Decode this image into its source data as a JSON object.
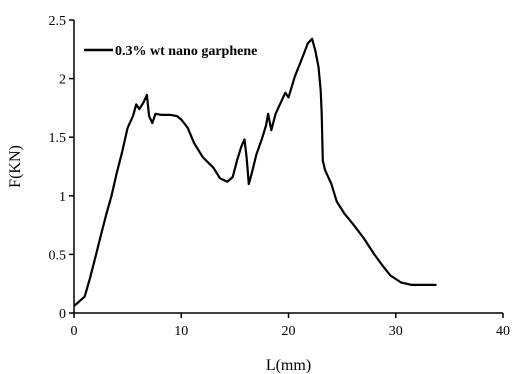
{
  "chart_data": {
    "type": "line",
    "xlabel": "L(mm)",
    "ylabel": "F(KN)",
    "xlim": [
      0,
      40
    ],
    "ylim": [
      0,
      2.5
    ],
    "x_ticks": [
      "0",
      "10",
      "20",
      "30",
      "40"
    ],
    "y_ticks": [
      "0",
      "0.5",
      "1",
      "1.5",
      "2",
      "2.5"
    ],
    "grid": false,
    "legend_position": "top-left",
    "series": [
      {
        "name": "0.3% wt nano garphene",
        "color": "#000000",
        "points": [
          [
            0.0,
            0.06
          ],
          [
            0.5,
            0.1
          ],
          [
            1.0,
            0.14
          ],
          [
            1.5,
            0.3
          ],
          [
            2.0,
            0.48
          ],
          [
            2.5,
            0.66
          ],
          [
            3.0,
            0.84
          ],
          [
            3.5,
            1.0
          ],
          [
            4.0,
            1.2
          ],
          [
            4.5,
            1.38
          ],
          [
            5.0,
            1.58
          ],
          [
            5.5,
            1.68
          ],
          [
            5.8,
            1.78
          ],
          [
            6.1,
            1.74
          ],
          [
            6.5,
            1.8
          ],
          [
            6.8,
            1.86
          ],
          [
            7.0,
            1.68
          ],
          [
            7.3,
            1.62
          ],
          [
            7.6,
            1.7
          ],
          [
            8.2,
            1.69
          ],
          [
            9.0,
            1.69
          ],
          [
            9.6,
            1.68
          ],
          [
            10.0,
            1.65
          ],
          [
            10.6,
            1.58
          ],
          [
            11.2,
            1.45
          ],
          [
            12.0,
            1.33
          ],
          [
            13.0,
            1.24
          ],
          [
            13.6,
            1.15
          ],
          [
            14.3,
            1.12
          ],
          [
            14.8,
            1.16
          ],
          [
            15.2,
            1.3
          ],
          [
            15.6,
            1.42
          ],
          [
            15.9,
            1.48
          ],
          [
            16.1,
            1.32
          ],
          [
            16.3,
            1.1
          ],
          [
            16.6,
            1.2
          ],
          [
            17.0,
            1.35
          ],
          [
            17.5,
            1.48
          ],
          [
            17.9,
            1.6
          ],
          [
            18.1,
            1.7
          ],
          [
            18.4,
            1.56
          ],
          [
            18.8,
            1.7
          ],
          [
            19.4,
            1.82
          ],
          [
            19.7,
            1.88
          ],
          [
            20.0,
            1.84
          ],
          [
            20.6,
            2.02
          ],
          [
            21.3,
            2.18
          ],
          [
            21.8,
            2.3
          ],
          [
            22.2,
            2.34
          ],
          [
            22.5,
            2.24
          ],
          [
            22.8,
            2.1
          ],
          [
            23.0,
            1.9
          ],
          [
            23.1,
            1.7
          ],
          [
            23.2,
            1.3
          ],
          [
            23.4,
            1.22
          ],
          [
            24.0,
            1.1
          ],
          [
            24.5,
            0.95
          ],
          [
            25.2,
            0.85
          ],
          [
            26.0,
            0.76
          ],
          [
            27.0,
            0.64
          ],
          [
            28.0,
            0.5
          ],
          [
            28.8,
            0.4
          ],
          [
            29.5,
            0.32
          ],
          [
            30.5,
            0.26
          ],
          [
            31.5,
            0.24
          ],
          [
            33.0,
            0.24
          ],
          [
            33.8,
            0.24
          ]
        ]
      }
    ]
  }
}
